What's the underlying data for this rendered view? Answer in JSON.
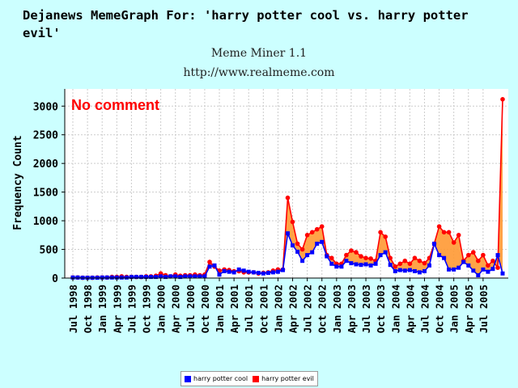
{
  "header": {
    "title": "Dejanews MemeGraph For: 'harry potter cool vs. harry potter evil'",
    "subtitle": "Meme Miner 1.1",
    "url": "http://www.realmeme.com"
  },
  "colors": {
    "background": "#ccffff",
    "cool": "#0000ff",
    "evil": "#ff0000",
    "fill": "#ff9933",
    "annotation": "#ff0000"
  },
  "chart_data": {
    "type": "area",
    "annotation": "No comment",
    "ylabel": "Frequency Count",
    "xlabel": "",
    "ylim": [
      0,
      3300
    ],
    "yticks": [
      0,
      500,
      1000,
      1500,
      2000,
      2500,
      3000
    ],
    "grid": true,
    "legend_placement": "bottom-center",
    "x_tick_labels": [
      "Jul 1998",
      "Oct 1998",
      "Jan 1999",
      "Apr 1999",
      "Jul 1999",
      "Oct 1999",
      "Jan 2000",
      "Apr 2000",
      "Jul 2000",
      "Oct 2000",
      "Jan 2001",
      "Apr 2001",
      "Jul 2001",
      "Oct 2001",
      "Jan 2002",
      "Apr 2002",
      "Jul 2002",
      "Oct 2002",
      "Jan 2003",
      "Apr 2003",
      "Jul 2003",
      "Oct 2003",
      "Jan 2004",
      "Apr 2004",
      "Jul 2004",
      "Oct 2004",
      "Jan 2005",
      "Apr 2005",
      "Jul 2005"
    ],
    "series": [
      {
        "name": "harry potter cool",
        "values": [
          10,
          10,
          5,
          5,
          5,
          5,
          10,
          10,
          10,
          10,
          10,
          10,
          20,
          20,
          20,
          20,
          20,
          20,
          30,
          20,
          30,
          30,
          20,
          30,
          30,
          30,
          30,
          30,
          200,
          220,
          60,
          120,
          110,
          100,
          150,
          130,
          110,
          100,
          90,
          80,
          90,
          100,
          110,
          140,
          780,
          570,
          460,
          300,
          400,
          450,
          600,
          630,
          380,
          250,
          200,
          200,
          300,
          260,
          240,
          230,
          240,
          220,
          250,
          400,
          450,
          230,
          120,
          140,
          130,
          140,
          120,
          100,
          120,
          220,
          600,
          400,
          350,
          150,
          150,
          180,
          280,
          220,
          130,
          50,
          150,
          110,
          160,
          400,
          80
        ],
        "color": "#0000ff"
      },
      {
        "name": "harry potter evil",
        "values": [
          10,
          10,
          5,
          5,
          5,
          10,
          10,
          10,
          20,
          20,
          30,
          20,
          20,
          20,
          20,
          30,
          30,
          40,
          80,
          50,
          30,
          60,
          40,
          50,
          50,
          60,
          50,
          60,
          280,
          200,
          130,
          150,
          140,
          120,
          120,
          100,
          100,
          100,
          80,
          90,
          100,
          130,
          150,
          150,
          1400,
          980,
          600,
          500,
          750,
          800,
          850,
          900,
          400,
          350,
          250,
          250,
          400,
          480,
          450,
          380,
          350,
          340,
          300,
          800,
          720,
          350,
          200,
          250,
          300,
          250,
          350,
          300,
          260,
          350,
          600,
          900,
          800,
          800,
          620,
          750,
          300,
          400,
          450,
          300,
          400,
          220,
          300,
          180,
          3120
        ]
      }
    ]
  }
}
